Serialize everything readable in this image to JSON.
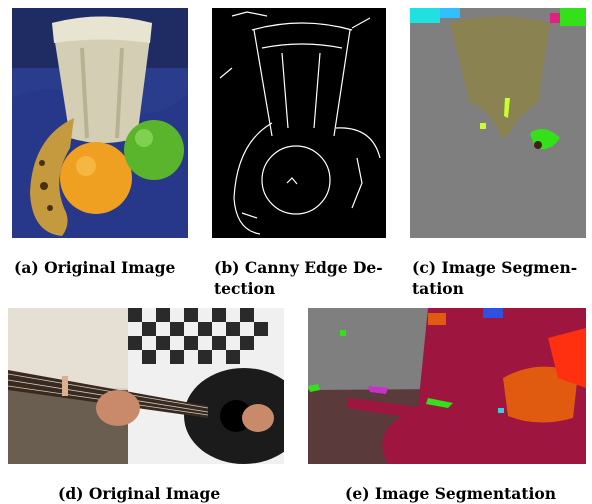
{
  "figures": [
    {
      "id": "a",
      "caption_line1": "(a) Original Image",
      "caption_line2": ""
    },
    {
      "id": "b",
      "caption_line1": "(b) Canny Edge De-",
      "caption_line2": "tection"
    },
    {
      "id": "c",
      "caption_line1": "(c) Image Segmen-",
      "caption_line2": "tation"
    },
    {
      "id": "d",
      "caption_line1": "(d) Original Image",
      "caption_line2": ""
    },
    {
      "id": "e",
      "caption_line1": "(e) Image Segmentation",
      "caption_line2": ""
    }
  ],
  "colors": {
    "fruit_background": "#2a3d8c",
    "glass": "#cfc9b0",
    "orange": "#f0a020",
    "apple": "#5ab52c",
    "banana": "#c9a040",
    "edge_background": "#000000",
    "edge_lines": "#ffffff",
    "segmentation_gray": "#7f7f7f",
    "segmentation_olive": "#8a8250",
    "segmentation_crimson": "#9e1540",
    "segmentation_orange": "#e05a10",
    "segmentation_red": "#ff3010",
    "segmentation_green": "#33e01a",
    "guitar_black": "#1b1b1b"
  }
}
